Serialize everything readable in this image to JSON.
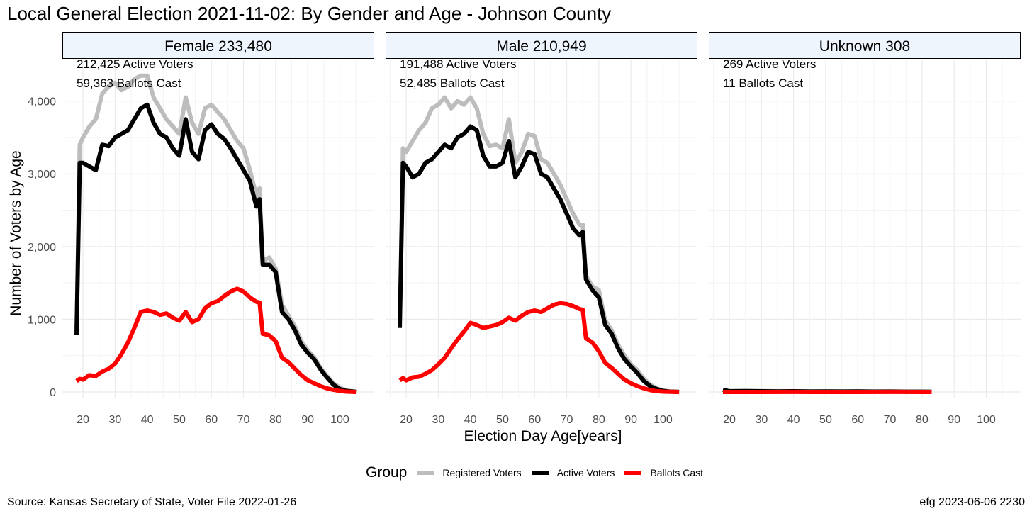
{
  "title": "Local General Election 2021-11-02:  By Gender and Age - Johnson County",
  "source": "Source:  Kansas Secretary of State, Voter File  2022-01-26",
  "credit": "efg 2023-06-06 2230",
  "colors": {
    "registered": "#bdbdbd",
    "active": "#000000",
    "ballots": "#ff0000",
    "strip_fill": "#eef5fd",
    "grid": "#ebebeb"
  },
  "legend": {
    "title": "Group",
    "items": [
      "Registered Voters",
      "Active Voters",
      "Ballots Cast"
    ]
  },
  "chart_data": {
    "type": "line",
    "xlabel": "Election Day Age[years]",
    "ylabel": "Number of Voters by Age",
    "xlim": [
      18,
      105
    ],
    "ylim": [
      0,
      4400
    ],
    "xticks": [
      20,
      30,
      40,
      50,
      60,
      70,
      80,
      90,
      100
    ],
    "xtick_labels": [
      "20",
      "30",
      "40",
      "50",
      "60",
      "70",
      "80",
      "90",
      "100"
    ],
    "yticks": [
      0,
      1000,
      2000,
      3000,
      4000
    ],
    "ytick_labels": [
      "0",
      "1,000",
      "2,000",
      "3,000",
      "4,000"
    ],
    "grid": true,
    "legend_position": "bottom",
    "panels": [
      {
        "strip": "Female 233,480",
        "annotations": [
          "212,425 Active Voters",
          "59,363 Ballots Cast"
        ],
        "series": [
          {
            "name": "Registered Voters",
            "x": [
              18,
              19,
              20,
              22,
              24,
              26,
              28,
              30,
              32,
              34,
              36,
              38,
              40,
              42,
              44,
              46,
              48,
              50,
              52,
              54,
              56,
              58,
              60,
              62,
              64,
              66,
              68,
              70,
              72,
              74,
              75,
              76,
              78,
              80,
              82,
              84,
              86,
              88,
              90,
              92,
              94,
              96,
              98,
              100,
              102,
              105
            ],
            "y": [
              820,
              3400,
              3500,
              3650,
              3750,
              4100,
              4200,
              4250,
              4150,
              4200,
              4300,
              4350,
              4350,
              4050,
              3900,
              3750,
              3650,
              3550,
              4050,
              3700,
              3550,
              3900,
              3950,
              3850,
              3750,
              3600,
              3450,
              3350,
              3050,
              2700,
              2800,
              1800,
              1850,
              1700,
              1200,
              1050,
              900,
              700,
              570,
              480,
              330,
              220,
              120,
              60,
              20,
              5
            ]
          },
          {
            "name": "Active Voters",
            "x": [
              18,
              19,
              20,
              22,
              24,
              26,
              28,
              30,
              32,
              34,
              36,
              38,
              40,
              42,
              44,
              46,
              48,
              50,
              52,
              54,
              56,
              58,
              60,
              62,
              64,
              66,
              68,
              70,
              72,
              74,
              75,
              76,
              78,
              80,
              82,
              84,
              86,
              88,
              90,
              92,
              94,
              96,
              98,
              100,
              102,
              105
            ],
            "y": [
              780,
              3150,
              3150,
              3100,
              3050,
              3400,
              3380,
              3500,
              3550,
              3600,
              3750,
              3900,
              3950,
              3700,
              3550,
              3500,
              3350,
              3250,
              3750,
              3300,
              3200,
              3600,
              3680,
              3550,
              3480,
              3350,
              3200,
              3050,
              2900,
              2550,
              2650,
              1750,
              1750,
              1650,
              1100,
              1000,
              850,
              650,
              540,
              450,
              310,
              200,
              100,
              40,
              15,
              3
            ]
          },
          {
            "name": "Ballots Cast",
            "x": [
              18,
              19,
              20,
              22,
              24,
              26,
              28,
              30,
              32,
              34,
              36,
              38,
              40,
              42,
              44,
              46,
              48,
              50,
              52,
              54,
              56,
              58,
              60,
              62,
              64,
              66,
              68,
              70,
              72,
              74,
              75,
              76,
              78,
              80,
              82,
              84,
              86,
              88,
              90,
              92,
              94,
              96,
              98,
              100,
              102,
              105
            ],
            "y": [
              150,
              180,
              170,
              230,
              220,
              280,
              320,
              390,
              520,
              680,
              880,
              1100,
              1120,
              1100,
              1060,
              1080,
              1020,
              980,
              1100,
              960,
              1000,
              1150,
              1220,
              1250,
              1320,
              1380,
              1420,
              1380,
              1300,
              1240,
              1230,
              800,
              780,
              700,
              470,
              410,
              320,
              230,
              160,
              120,
              80,
              50,
              30,
              15,
              5,
              0
            ]
          }
        ]
      },
      {
        "strip": "Male 210,949",
        "annotations": [
          "191,488 Active Voters",
          "52,485 Ballots Cast"
        ],
        "series": [
          {
            "name": "Registered Voters",
            "x": [
              18,
              19,
              20,
              22,
              24,
              26,
              28,
              30,
              32,
              34,
              36,
              38,
              40,
              42,
              44,
              46,
              48,
              50,
              52,
              54,
              56,
              58,
              60,
              62,
              64,
              66,
              68,
              70,
              72,
              74,
              75,
              76,
              78,
              80,
              82,
              84,
              86,
              88,
              90,
              92,
              94,
              96,
              98,
              100,
              102,
              105
            ],
            "y": [
              900,
              3350,
              3300,
              3450,
              3600,
              3700,
              3900,
              3950,
              4050,
              3900,
              4000,
              3950,
              4050,
              3900,
              3550,
              3380,
              3400,
              3350,
              3750,
              3150,
              3300,
              3550,
              3520,
              3200,
              3150,
              3000,
              2850,
              2650,
              2450,
              2300,
              2300,
              1600,
              1450,
              1400,
              980,
              850,
              650,
              500,
              380,
              300,
              180,
              100,
              50,
              20,
              8,
              2
            ]
          },
          {
            "name": "Active Voters",
            "x": [
              18,
              19,
              20,
              22,
              24,
              26,
              28,
              30,
              32,
              34,
              36,
              38,
              40,
              42,
              44,
              46,
              48,
              50,
              52,
              54,
              56,
              58,
              60,
              62,
              64,
              66,
              68,
              70,
              72,
              74,
              75,
              76,
              78,
              80,
              82,
              84,
              86,
              88,
              90,
              92,
              94,
              96,
              98,
              100,
              102,
              105
            ],
            "y": [
              880,
              3150,
              3100,
              2950,
              3000,
              3150,
              3200,
              3300,
              3400,
              3350,
              3500,
              3550,
              3650,
              3600,
              3250,
              3100,
              3100,
              3150,
              3450,
              2950,
              3100,
              3300,
              3270,
              3000,
              2950,
              2800,
              2650,
              2450,
              2250,
              2150,
              2200,
              1550,
              1400,
              1300,
              920,
              800,
              600,
              450,
              350,
              260,
              150,
              80,
              40,
              15,
              5,
              1
            ]
          },
          {
            "name": "Ballots Cast",
            "x": [
              18,
              19,
              20,
              22,
              24,
              26,
              28,
              30,
              32,
              34,
              36,
              38,
              40,
              42,
              44,
              46,
              48,
              50,
              52,
              54,
              56,
              58,
              60,
              62,
              64,
              66,
              68,
              70,
              72,
              74,
              75,
              76,
              78,
              80,
              82,
              84,
              86,
              88,
              90,
              92,
              94,
              96,
              98,
              100,
              102,
              105
            ],
            "y": [
              160,
              190,
              160,
              200,
              210,
              250,
              300,
              380,
              470,
              600,
              720,
              830,
              950,
              920,
              880,
              900,
              920,
              960,
              1020,
              980,
              1050,
              1100,
              1120,
              1100,
              1150,
              1200,
              1220,
              1210,
              1180,
              1140,
              1130,
              740,
              680,
              560,
              400,
              330,
              250,
              170,
              120,
              80,
              50,
              25,
              12,
              5,
              2,
              0
            ]
          }
        ]
      },
      {
        "strip": "Unknown 308",
        "annotations": [
          "269 Active Voters",
          "11 Ballots Cast"
        ],
        "series": [
          {
            "name": "Registered Voters",
            "x": [
              18,
              20,
              30,
              40,
              50,
              60,
              70,
              80,
              83
            ],
            "y": [
              25,
              15,
              12,
              10,
              8,
              8,
              6,
              4,
              2
            ]
          },
          {
            "name": "Active Voters",
            "x": [
              18,
              19,
              20,
              25,
              30,
              35,
              40,
              45,
              50,
              55,
              60,
              65,
              70,
              75,
              80,
              83
            ],
            "y": [
              30,
              20,
              10,
              12,
              10,
              8,
              10,
              6,
              8,
              6,
              8,
              5,
              6,
              4,
              4,
              2
            ]
          },
          {
            "name": "Ballots Cast",
            "x": [
              18,
              30,
              40,
              50,
              60,
              70,
              80,
              83
            ],
            "y": [
              0,
              0,
              1,
              0,
              0,
              1,
              0,
              0
            ]
          }
        ]
      }
    ]
  }
}
